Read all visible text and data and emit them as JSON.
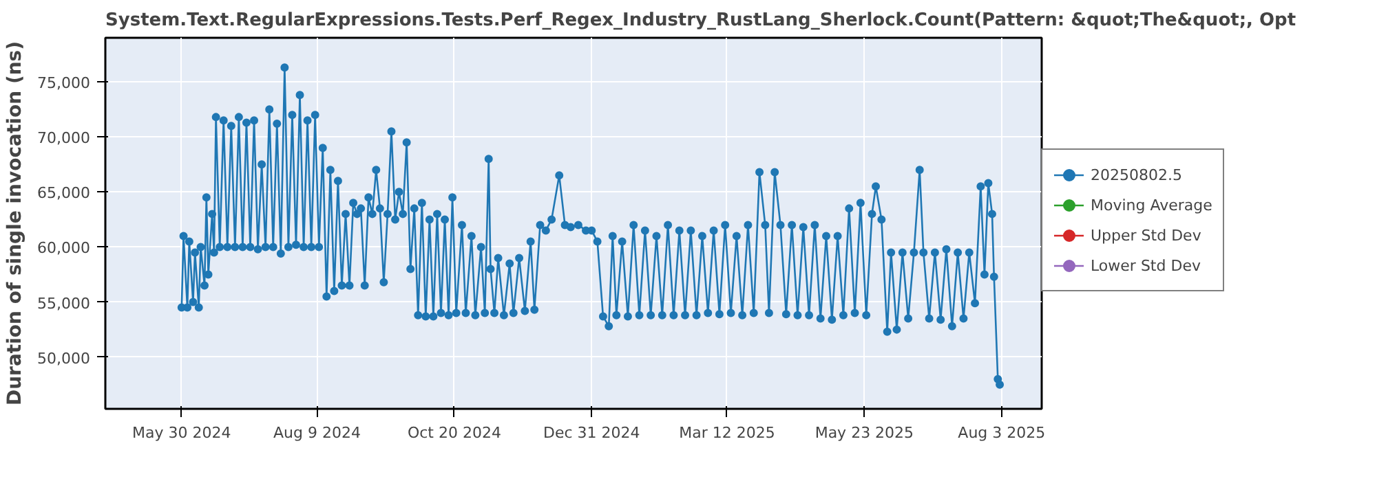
{
  "chart_data": {
    "type": "line",
    "title": "System.Text.RegularExpressions.Tests.Perf_Regex_Industry_RustLang_Sherlock.Count(Pattern: &quot;The&quot;, Opt",
    "ylabel": "Duration of single invocation (ns)",
    "marker": "circle",
    "line_style": "solid",
    "grid": true,
    "legend": "right",
    "xlim": [
      "2024-04-20",
      "2025-08-24"
    ],
    "xticks": [
      {
        "value": "2024-05-30",
        "label": "May 30 2024"
      },
      {
        "value": "2024-08-09",
        "label": "Aug 9 2024"
      },
      {
        "value": "2024-10-20",
        "label": "Oct 20 2024"
      },
      {
        "value": "2024-12-31",
        "label": "Dec 31 2024"
      },
      {
        "value": "2025-03-12",
        "label": "Mar 12 2025"
      },
      {
        "value": "2025-05-23",
        "label": "May 23 2025"
      },
      {
        "value": "2025-08-03",
        "label": "Aug 3 2025"
      }
    ],
    "ylim": [
      45300,
      79000
    ],
    "yticks": [
      {
        "value": 50000,
        "label": "50,000"
      },
      {
        "value": 55000,
        "label": "55,000"
      },
      {
        "value": 60000,
        "label": "60,000"
      },
      {
        "value": 65000,
        "label": "65,000"
      },
      {
        "value": 70000,
        "label": "70,000"
      },
      {
        "value": 75000,
        "label": "75,000"
      }
    ],
    "x": [
      "2024-05-30",
      "2024-05-31",
      "2024-06-02",
      "2024-06-03",
      "2024-06-05",
      "2024-06-06",
      "2024-06-08",
      "2024-06-09",
      "2024-06-11",
      "2024-06-12",
      "2024-06-13",
      "2024-06-15",
      "2024-06-16",
      "2024-06-17",
      "2024-06-19",
      "2024-06-21",
      "2024-06-23",
      "2024-06-25",
      "2024-06-27",
      "2024-06-29",
      "2024-07-01",
      "2024-07-03",
      "2024-07-05",
      "2024-07-07",
      "2024-07-09",
      "2024-07-11",
      "2024-07-13",
      "2024-07-15",
      "2024-07-17",
      "2024-07-19",
      "2024-07-21",
      "2024-07-23",
      "2024-07-25",
      "2024-07-27",
      "2024-07-29",
      "2024-07-31",
      "2024-08-02",
      "2024-08-04",
      "2024-08-06",
      "2024-08-08",
      "2024-08-10",
      "2024-08-12",
      "2024-08-14",
      "2024-08-16",
      "2024-08-18",
      "2024-08-20",
      "2024-08-22",
      "2024-08-24",
      "2024-08-26",
      "2024-08-28",
      "2024-08-30",
      "2024-09-01",
      "2024-09-03",
      "2024-09-05",
      "2024-09-07",
      "2024-09-09",
      "2024-09-11",
      "2024-09-13",
      "2024-09-15",
      "2024-09-17",
      "2024-09-19",
      "2024-09-21",
      "2024-09-23",
      "2024-09-25",
      "2024-09-27",
      "2024-09-29",
      "2024-10-01",
      "2024-10-03",
      "2024-10-05",
      "2024-10-07",
      "2024-10-09",
      "2024-10-11",
      "2024-10-13",
      "2024-10-15",
      "2024-10-17",
      "2024-10-19",
      "2024-10-21",
      "2024-10-24",
      "2024-10-26",
      "2024-10-29",
      "2024-10-31",
      "2024-11-03",
      "2024-11-05",
      "2024-11-07",
      "2024-11-08",
      "2024-11-10",
      "2024-11-12",
      "2024-11-15",
      "2024-11-18",
      "2024-11-20",
      "2024-11-23",
      "2024-11-26",
      "2024-11-29",
      "2024-12-01",
      "2024-12-04",
      "2024-12-07",
      "2024-12-10",
      "2024-12-14",
      "2024-12-17",
      "2024-12-20",
      "2024-12-24",
      "2024-12-28",
      "2024-12-31",
      "2025-01-03",
      "2025-01-06",
      "2025-01-09",
      "2025-01-11",
      "2025-01-13",
      "2025-01-16",
      "2025-01-19",
      "2025-01-22",
      "2025-01-25",
      "2025-01-28",
      "2025-01-31",
      "2025-02-03",
      "2025-02-06",
      "2025-02-09",
      "2025-02-12",
      "2025-02-15",
      "2025-02-18",
      "2025-02-21",
      "2025-02-24",
      "2025-02-27",
      "2025-03-02",
      "2025-03-05",
      "2025-03-08",
      "2025-03-11",
      "2025-03-14",
      "2025-03-17",
      "2025-03-20",
      "2025-03-23",
      "2025-03-26",
      "2025-03-29",
      "2025-04-01",
      "2025-04-03",
      "2025-04-06",
      "2025-04-09",
      "2025-04-12",
      "2025-04-15",
      "2025-04-18",
      "2025-04-21",
      "2025-04-24",
      "2025-04-27",
      "2025-04-30",
      "2025-05-03",
      "2025-05-06",
      "2025-05-09",
      "2025-05-12",
      "2025-05-15",
      "2025-05-18",
      "2025-05-21",
      "2025-05-24",
      "2025-05-27",
      "2025-05-29",
      "2025-06-01",
      "2025-06-04",
      "2025-06-06",
      "2025-06-09",
      "2025-06-12",
      "2025-06-15",
      "2025-06-18",
      "2025-06-21",
      "2025-06-23",
      "2025-06-26",
      "2025-06-29",
      "2025-07-02",
      "2025-07-05",
      "2025-07-08",
      "2025-07-11",
      "2025-07-14",
      "2025-07-17",
      "2025-07-20",
      "2025-07-23",
      "2025-07-25",
      "2025-07-27",
      "2025-07-29",
      "2025-07-30",
      "2025-08-01",
      "2025-08-02"
    ],
    "series": [
      {
        "name": "20250802.5",
        "color": "#1f77b4",
        "values": [
          54500,
          61000,
          54500,
          60500,
          55000,
          59500,
          54500,
          60000,
          56500,
          64500,
          57500,
          63000,
          59500,
          71800,
          60000,
          71500,
          60000,
          71000,
          60000,
          71800,
          60000,
          71300,
          60000,
          71500,
          59800,
          67500,
          60000,
          72500,
          60000,
          71200,
          59400,
          76300,
          60000,
          72000,
          60200,
          73800,
          60000,
          71500,
          60000,
          72000,
          60000,
          69000,
          55500,
          67000,
          56000,
          66000,
          56500,
          63000,
          56500,
          64000,
          63000,
          63500,
          56500,
          64500,
          63000,
          67000,
          63500,
          56800,
          63000,
          70500,
          62500,
          65000,
          63000,
          69500,
          58000,
          63500,
          53800,
          64000,
          53700,
          62500,
          53700,
          63000,
          54000,
          62500,
          53800,
          64500,
          54000,
          62000,
          54000,
          61000,
          53800,
          60000,
          54000,
          68000,
          58000,
          54000,
          59000,
          53800,
          58500,
          54000,
          59000,
          54200,
          60500,
          54300,
          62000,
          61500,
          62500,
          66500,
          62000,
          61800,
          62000,
          61500,
          61500,
          60500,
          53700,
          52800,
          61000,
          53800,
          60500,
          53700,
          62000,
          53800,
          61500,
          53800,
          61000,
          53800,
          62000,
          53800,
          61500,
          53800,
          61500,
          53800,
          61000,
          54000,
          61500,
          53900,
          62000,
          54000,
          61000,
          53800,
          62000,
          54000,
          66800,
          62000,
          54000,
          66800,
          62000,
          53900,
          62000,
          53800,
          61800,
          53800,
          62000,
          53500,
          61000,
          53400,
          61000,
          53800,
          63500,
          54000,
          64000,
          53800,
          63000,
          65500,
          62500,
          52300,
          59500,
          52500,
          59500,
          53500,
          59500,
          67000,
          59500,
          53500,
          59500,
          53400,
          59800,
          52800,
          59500,
          53500,
          59500,
          54900,
          65500,
          57500,
          65800,
          63000,
          57300,
          48000,
          47500
        ]
      },
      {
        "name": "Moving Average",
        "color": "#2ca02c",
        "values": [
          null,
          null,
          null,
          null,
          null,
          null,
          null,
          null,
          null,
          null,
          null,
          null,
          null,
          null,
          null,
          null,
          null,
          null,
          null,
          null,
          null,
          null,
          null,
          null,
          null,
          null,
          null,
          null,
          null,
          null,
          null,
          null,
          null,
          null,
          null,
          null,
          null,
          null,
          null,
          null,
          null,
          null,
          null,
          null,
          null,
          null,
          null,
          null,
          null,
          null,
          null,
          null,
          null,
          null,
          null,
          null,
          null,
          null,
          null,
          null,
          null,
          null,
          null,
          null,
          null,
          null,
          null,
          null,
          null,
          null,
          null,
          null,
          null,
          null,
          null,
          null,
          null,
          null,
          null,
          null,
          null,
          null,
          null,
          null,
          null,
          null,
          null,
          null,
          null,
          null,
          null,
          null,
          null,
          null,
          null,
          null,
          null,
          null,
          null,
          null,
          null,
          null,
          null,
          null,
          null,
          null,
          null,
          null,
          null,
          null,
          null,
          null,
          null,
          null,
          null,
          null,
          null,
          null,
          null,
          null,
          null,
          null,
          null,
          null,
          null,
          null,
          null,
          null,
          null,
          null,
          null,
          null,
          null,
          null,
          null,
          null,
          null,
          null,
          null,
          null,
          null,
          null,
          null,
          null,
          null,
          null,
          null,
          null,
          null,
          null,
          null,
          null,
          null,
          null,
          null,
          null,
          null,
          null,
          null,
          null,
          null,
          null,
          null,
          null,
          null,
          null,
          null,
          null,
          null,
          null,
          null,
          null,
          null,
          null,
          null,
          null,
          null,
          null,
          null
        ]
      },
      {
        "name": "Upper Std Dev",
        "color": "#d62728",
        "values": [
          null,
          null,
          null,
          null,
          null,
          null,
          null,
          null,
          null,
          null,
          null,
          null,
          null,
          null,
          null,
          null,
          null,
          null,
          null,
          null,
          null,
          null,
          null,
          null,
          null,
          null,
          null,
          null,
          null,
          null,
          null,
          null,
          null,
          null,
          null,
          null,
          null,
          null,
          null,
          null,
          null,
          null,
          null,
          null,
          null,
          null,
          null,
          null,
          null,
          null,
          null,
          null,
          null,
          null,
          null,
          null,
          null,
          null,
          null,
          null,
          null,
          null,
          null,
          null,
          null,
          null,
          null,
          null,
          null,
          null,
          null,
          null,
          null,
          null,
          null,
          null,
          null,
          null,
          null,
          null,
          null,
          null,
          null,
          null,
          null,
          null,
          null,
          null,
          null,
          null,
          null,
          null,
          null,
          null,
          null,
          null,
          null,
          null,
          null,
          null,
          null,
          null,
          null,
          null,
          null,
          null,
          null,
          null,
          null,
          null,
          null,
          null,
          null,
          null,
          null,
          null,
          null,
          null,
          null,
          null,
          null,
          null,
          null,
          null,
          null,
          null,
          null,
          null,
          null,
          null,
          null,
          null,
          null,
          null,
          null,
          null,
          null,
          null,
          null,
          null,
          null,
          null,
          null,
          null,
          null,
          null,
          null,
          null,
          null,
          null,
          null,
          null,
          null,
          null,
          null,
          null,
          null,
          null,
          null,
          null,
          null,
          null,
          null,
          null,
          null,
          null,
          null,
          null,
          null,
          null,
          null,
          null,
          null,
          null,
          null,
          null,
          null,
          null,
          null
        ]
      },
      {
        "name": "Lower Std Dev",
        "color": "#9467bd",
        "values": [
          null,
          null,
          null,
          null,
          null,
          null,
          null,
          null,
          null,
          null,
          null,
          null,
          null,
          null,
          null,
          null,
          null,
          null,
          null,
          null,
          null,
          null,
          null,
          null,
          null,
          null,
          null,
          null,
          null,
          null,
          null,
          null,
          null,
          null,
          null,
          null,
          null,
          null,
          null,
          null,
          null,
          null,
          null,
          null,
          null,
          null,
          null,
          null,
          null,
          null,
          null,
          null,
          null,
          null,
          null,
          null,
          null,
          null,
          null,
          null,
          null,
          null,
          null,
          null,
          null,
          null,
          null,
          null,
          null,
          null,
          null,
          null,
          null,
          null,
          null,
          null,
          null,
          null,
          null,
          null,
          null,
          null,
          null,
          null,
          null,
          null,
          null,
          null,
          null,
          null,
          null,
          null,
          null,
          null,
          null,
          null,
          null,
          null,
          null,
          null,
          null,
          null,
          null,
          null,
          null,
          null,
          null,
          null,
          null,
          null,
          null,
          null,
          null,
          null,
          null,
          null,
          null,
          null,
          null,
          null,
          null,
          null,
          null,
          null,
          null,
          null,
          null,
          null,
          null,
          null,
          null,
          null,
          null,
          null,
          null,
          null,
          null,
          null,
          null,
          null,
          null,
          null,
          null,
          null,
          null,
          null,
          null,
          null,
          null,
          null,
          null,
          null,
          null,
          null,
          null,
          null,
          null,
          null,
          null,
          null,
          null,
          null,
          null,
          null,
          null,
          null,
          null,
          null,
          null,
          null,
          null,
          null,
          null,
          null,
          null,
          null,
          null,
          null,
          null
        ]
      }
    ]
  }
}
